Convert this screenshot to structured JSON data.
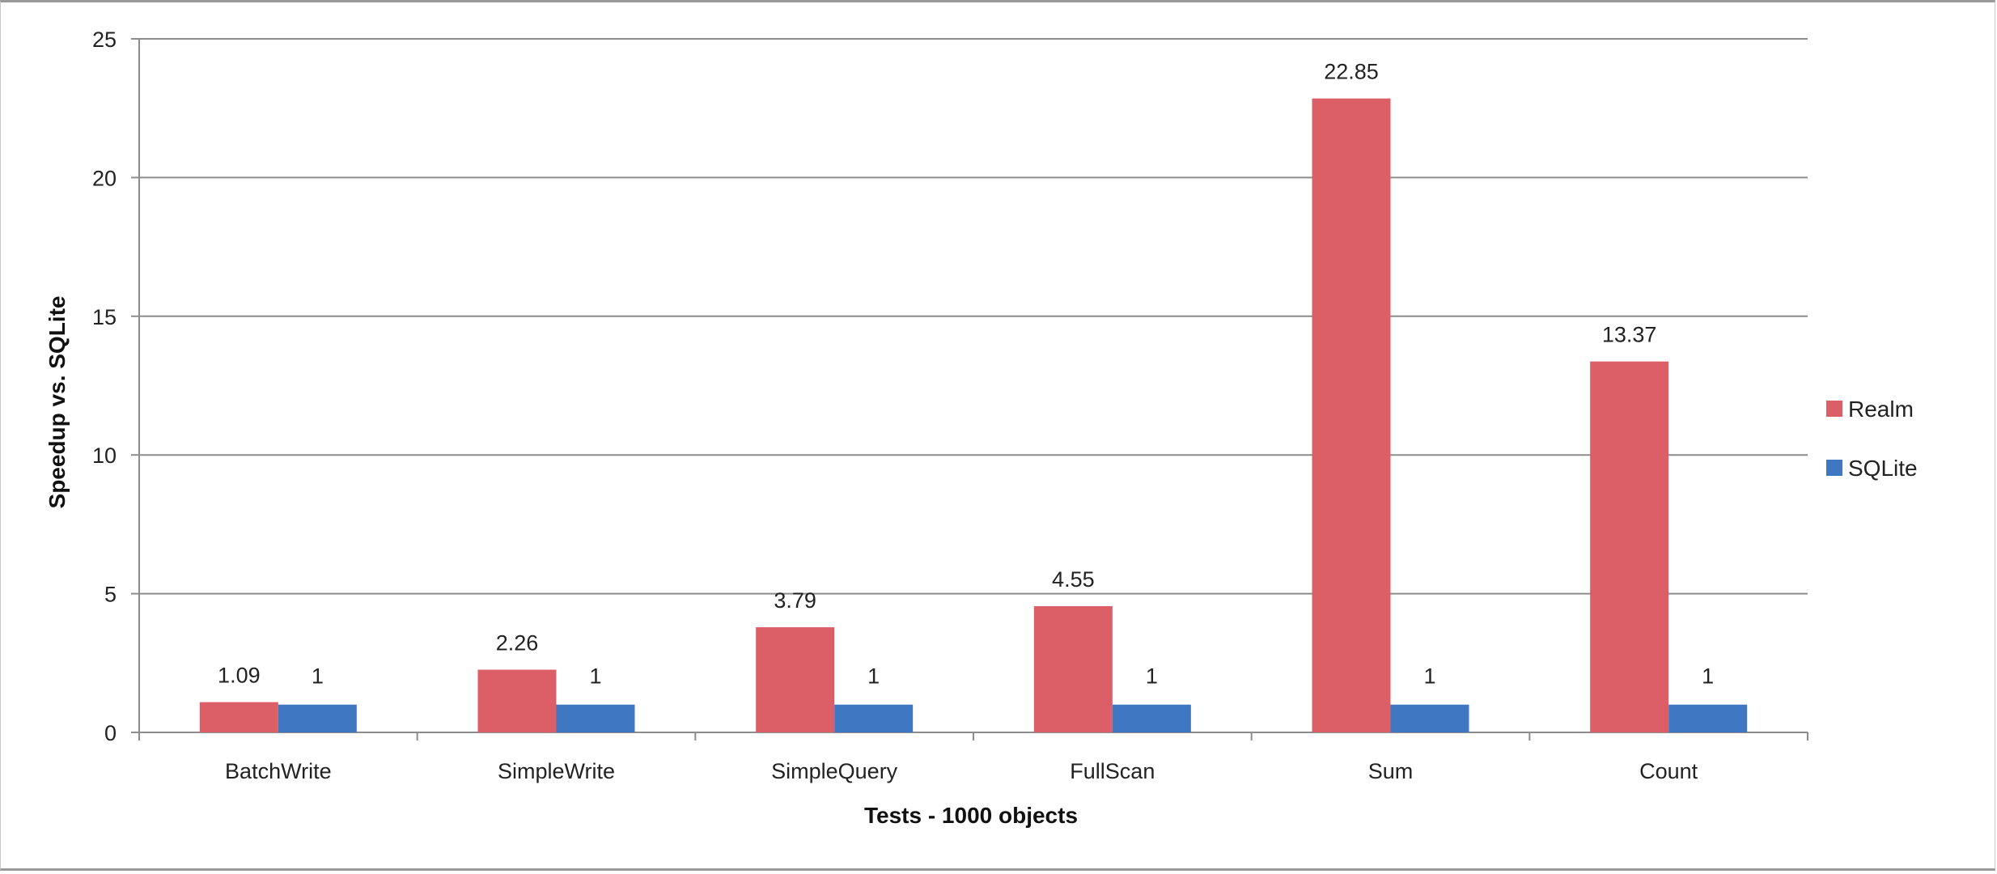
{
  "chart_data": {
    "type": "bar",
    "title": "",
    "xlabel": "Tests - 1000 objects",
    "ylabel": "Speedup vs. SQLite",
    "ylim": [
      0,
      25
    ],
    "yticks": [
      0,
      5,
      10,
      15,
      20,
      25
    ],
    "grid": true,
    "legend_position": "right",
    "categories": [
      "BatchWrite",
      "SimpleWrite",
      "SimpleQuery",
      "FullScan",
      "Sum",
      "Count"
    ],
    "series": [
      {
        "name": "Realm",
        "color": "#dc5f68",
        "values": [
          1.09,
          2.26,
          3.79,
          4.55,
          22.85,
          13.37
        ],
        "labels": [
          "1.09",
          "2.26",
          "3.79",
          "4.55",
          "22.85",
          "13.37"
        ]
      },
      {
        "name": "SQLite",
        "color": "#3f77c2",
        "values": [
          1,
          1,
          1,
          1,
          1,
          1
        ],
        "labels": [
          "1",
          "1",
          "1",
          "1",
          "1",
          "1"
        ]
      }
    ]
  }
}
